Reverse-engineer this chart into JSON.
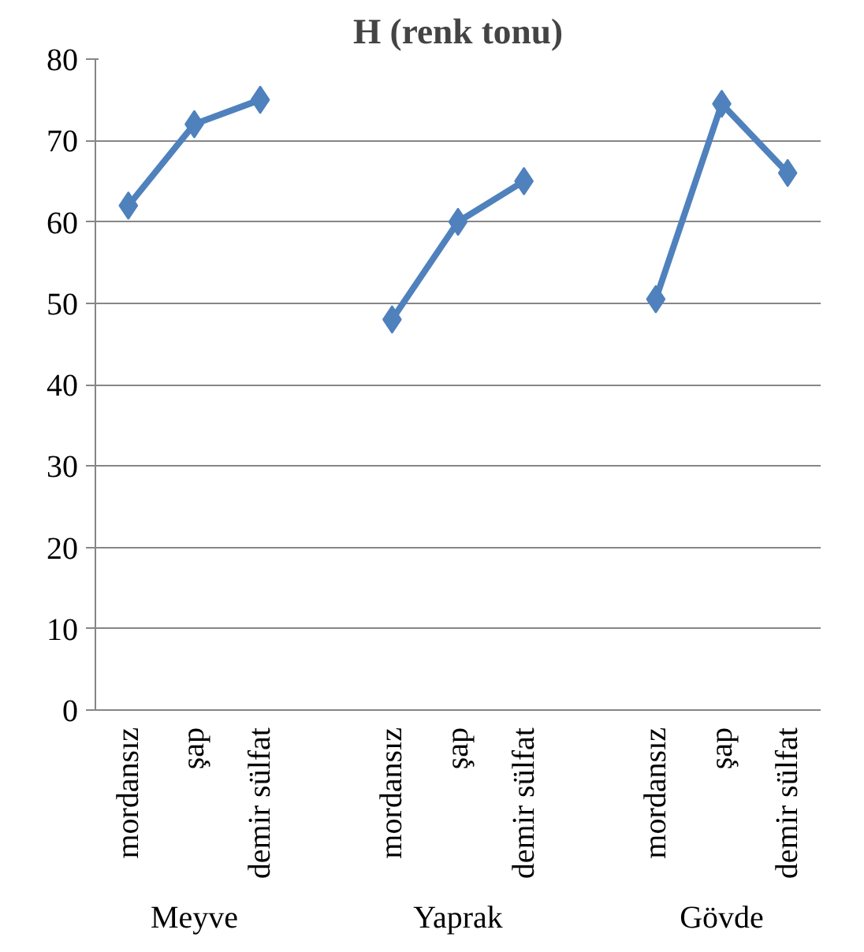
{
  "chart_data": {
    "type": "line",
    "title": "H (renk tonu)",
    "categories": [
      "mordansız",
      "şap",
      "demir sülfat",
      null,
      "mordansız",
      "şap",
      "demir sülfat",
      null,
      "mordansız",
      "şap",
      "demir sülfat"
    ],
    "series": [
      {
        "color": "#4f81bd",
        "values": [
          62,
          72,
          75,
          null,
          48,
          60,
          65,
          null,
          50.5,
          74.5,
          66
        ]
      }
    ],
    "annotations": [
      "Meyve",
      "Yaprak",
      "Gövde"
    ],
    "ylim": [
      0,
      80
    ],
    "yticks": [
      0,
      10,
      20,
      30,
      40,
      50,
      60,
      70,
      80
    ],
    "grid": "y",
    "marker": "diamond"
  }
}
